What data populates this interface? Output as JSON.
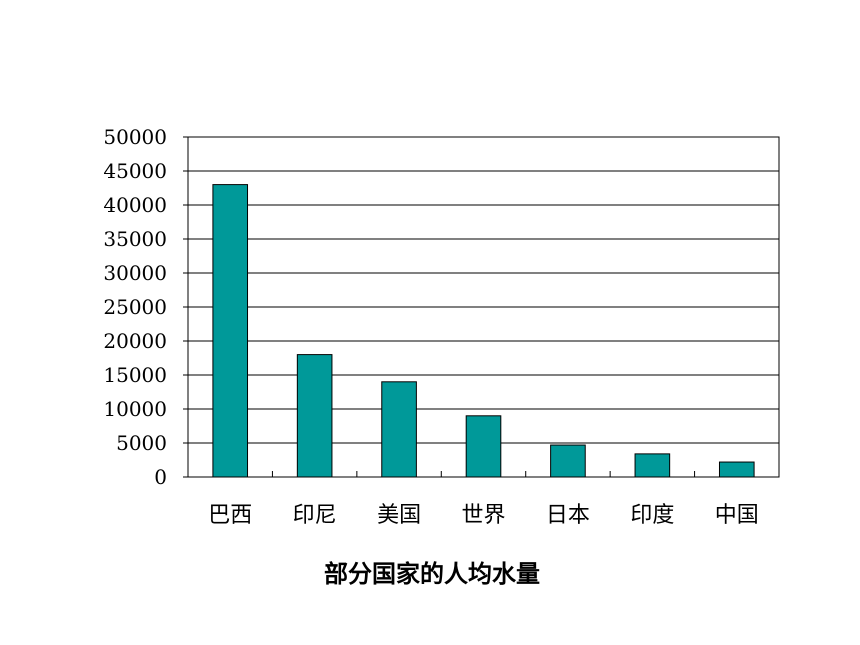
{
  "chart_data": {
    "type": "bar",
    "title": "部分国家的人均水量",
    "xlabel": "",
    "ylabel": "",
    "categories": [
      "巴西",
      "印尼",
      "美国",
      "世界",
      "日本",
      "印度",
      "中国"
    ],
    "values": [
      43000,
      18000,
      14000,
      9000,
      4700,
      3400,
      2200
    ],
    "ylim": [
      0,
      50000
    ],
    "yticks": [
      0,
      5000,
      10000,
      15000,
      20000,
      25000,
      30000,
      35000,
      40000,
      45000,
      50000
    ],
    "grid": true,
    "legend": "none",
    "colors": {
      "bar_fill": "#009999",
      "bar_stroke": "#000000",
      "grid": "#000000"
    }
  }
}
